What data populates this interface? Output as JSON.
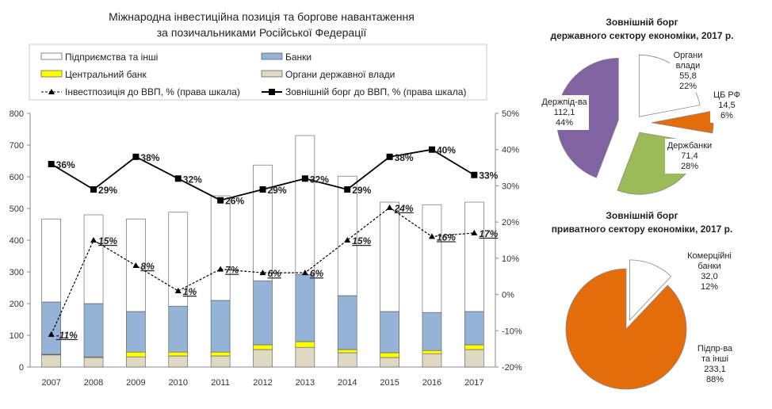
{
  "chart_data": [
    {
      "type": "bar",
      "title": [
        "Міжнародна інвестиційна позиція та боргове навантаження",
        "за позичальниками Російської Федерації"
      ],
      "categories": [
        "2007",
        "2008",
        "2009",
        "2010",
        "2011",
        "2012",
        "2013",
        "2014",
        "2015",
        "2016",
        "2017"
      ],
      "stacked": true,
      "ylim": [
        0,
        800
      ],
      "yticks": [
        "0",
        "100",
        "200",
        "300",
        "400",
        "500",
        "600",
        "700",
        "800"
      ],
      "y2lim": [
        -20,
        50
      ],
      "y2ticks": [
        "-20%",
        "-10%",
        "0%",
        "10%",
        "20%",
        "30%",
        "40%",
        "50%"
      ],
      "series": [
        {
          "name": "Органи державної влади",
          "color": "#ddd9c3",
          "values": [
            38,
            30,
            32,
            35,
            35,
            55,
            62,
            45,
            30,
            42,
            55
          ]
        },
        {
          "name": "Центральний банк",
          "color": "#ffff00",
          "values": [
            2,
            2,
            15,
            12,
            12,
            15,
            18,
            10,
            15,
            10,
            15
          ]
        },
        {
          "name": "Банки",
          "color": "#95b3d7",
          "values": [
            165,
            168,
            128,
            145,
            163,
            202,
            212,
            170,
            130,
            120,
            105
          ]
        },
        {
          "name": "Підприємства та інші",
          "color": "#ffffff",
          "values": [
            262,
            280,
            292,
            296,
            330,
            365,
            438,
            377,
            345,
            340,
            345
          ]
        }
      ],
      "lines": [
        {
          "name": "Інвестпозиція до ВВП, % (права шкала)",
          "axis": "right",
          "style": "dashed",
          "marker": "triangle",
          "values": [
            -11,
            15,
            8,
            1,
            7,
            6,
            6,
            15,
            24,
            16,
            17
          ],
          "labels": [
            "-11%",
            "15%",
            "8%",
            "1%",
            "7%",
            "6%",
            "6%",
            "15%",
            "24%",
            "16%",
            "17%"
          ]
        },
        {
          "name": "Зовнішній борг до ВВП, % (права шкала)",
          "axis": "right",
          "style": "solid",
          "marker": "square",
          "values": [
            36,
            29,
            38,
            32,
            26,
            29,
            32,
            29,
            38,
            40,
            33
          ],
          "labels": [
            "36%",
            "29%",
            "38%",
            "32%",
            "26%",
            "29%",
            "32%",
            "29%",
            "38%",
            "40%",
            "33%"
          ]
        }
      ],
      "legend": [
        "Підприємства та інші",
        "Банки",
        "Центральний банк",
        "Органи державної влади",
        "Інвестпозиція до ВВП, % (права шкала)",
        "Зовнішній борг до ВВП, % (права шкала)"
      ]
    },
    {
      "type": "pie",
      "title": [
        "Зовнішній борг",
        "державного сектору економіки, 2017 р."
      ],
      "slices": [
        {
          "name": "Органи влади",
          "value": 55.8,
          "value_label": "55,8",
          "pct": "22%",
          "color": "#ffffff"
        },
        {
          "name": "ЦБ РФ",
          "value": 14.5,
          "value_label": "14,5",
          "pct": "6%",
          "color": "#e46c0a"
        },
        {
          "name": "Держбанки",
          "value": 71.4,
          "value_label": "71,4",
          "pct": "28%",
          "color": "#9bbb59"
        },
        {
          "name": "Держпід-ва",
          "value": 112.1,
          "value_label": "112,1",
          "pct": "44%",
          "color": "#8064a2"
        }
      ]
    },
    {
      "type": "pie",
      "title": [
        "Зовнішній борг",
        "приватного сектору економіки, 2017 р."
      ],
      "slices": [
        {
          "name": "Комерційні банки",
          "value": 32.0,
          "value_label": "32,0",
          "pct": "12%",
          "color": "#ffffff"
        },
        {
          "name": "Підпр-ва та інші",
          "value": 233.1,
          "value_label": "233,1",
          "pct": "88%",
          "color": "#e46c0a"
        }
      ]
    }
  ]
}
